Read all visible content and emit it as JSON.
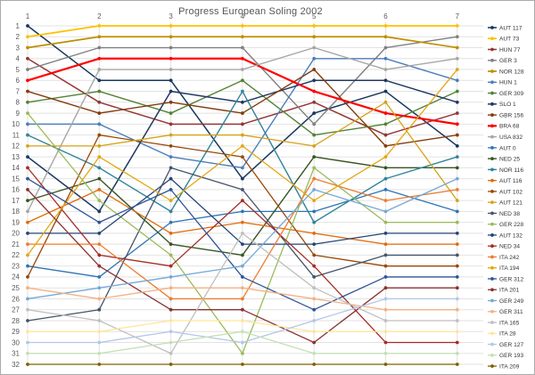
{
  "chart_data": {
    "type": "line",
    "subtype": "bump-chart",
    "title": "Progress European Soling 2002",
    "xlabel": "",
    "ylabel": "",
    "x": [
      1,
      2,
      3,
      4,
      5,
      6,
      7
    ],
    "x_ticks": [
      "1",
      "2",
      "3",
      "4",
      "5",
      "6",
      "7"
    ],
    "x_axis_position": "top",
    "y_ticks": [
      "1",
      "2",
      "3",
      "4",
      "5",
      "6",
      "7",
      "8",
      "9",
      "10",
      "11",
      "12",
      "13",
      "14",
      "15",
      "16",
      "17",
      "18",
      "19",
      "20",
      "21",
      "22",
      "23",
      "24",
      "25",
      "26",
      "27",
      "28",
      "29",
      "30",
      "31",
      "32"
    ],
    "ylim": [
      1,
      32
    ],
    "y_inverted": true,
    "grid": true,
    "gridline_color": "#e2e2e2",
    "axis_text_color": "#595959",
    "legend_position": "right",
    "legend_text_color": "#333333",
    "series": [
      {
        "name": "AUT 117",
        "color": "#17375E",
        "width": 1.5,
        "values": [
          1,
          6,
          6,
          15,
          9,
          7,
          12
        ]
      },
      {
        "name": "AUT 73",
        "color": "#FFC000",
        "width": 1.7,
        "values": [
          2,
          1,
          1,
          1,
          1,
          1,
          1
        ]
      },
      {
        "name": "HUN 77",
        "color": "#953735",
        "width": 1.5,
        "values": [
          4,
          8,
          10,
          10,
          8,
          11,
          9
        ]
      },
      {
        "name": "GER 3",
        "color": "#808080",
        "width": 1.4,
        "values": [
          5,
          3,
          3,
          3,
          10,
          3,
          2
        ]
      },
      {
        "name": "NOR 128",
        "color": "#BF8F00",
        "width": 1.7,
        "values": [
          3,
          2,
          2,
          2,
          2,
          2,
          3
        ]
      },
      {
        "name": "HUN 1",
        "color": "#4A7EBB",
        "width": 1.4,
        "values": [
          10,
          10,
          13,
          14,
          4,
          4,
          6
        ]
      },
      {
        "name": "GER 309",
        "color": "#548235",
        "width": 1.4,
        "values": [
          8,
          7,
          9,
          6,
          11,
          10,
          7
        ]
      },
      {
        "name": "SLO 1",
        "color": "#1F3864",
        "width": 1.5,
        "values": [
          13,
          18,
          7,
          8,
          6,
          6,
          8
        ]
      },
      {
        "name": "GBR 156",
        "color": "#843C0C",
        "width": 1.4,
        "values": [
          7,
          9,
          8,
          9,
          5,
          12,
          11
        ]
      },
      {
        "name": "BRA 68",
        "color": "#FF0000",
        "width": 2.2,
        "values": [
          6,
          4,
          4,
          4,
          7,
          9,
          10
        ]
      },
      {
        "name": "USA 832",
        "color": "#A6A6A6",
        "width": 1.4,
        "values": [
          18,
          5,
          5,
          5,
          3,
          5,
          4
        ]
      },
      {
        "name": "AUT 0",
        "color": "#2E75B6",
        "width": 1.3,
        "values": [
          23,
          24,
          19,
          18,
          18,
          16,
          18
        ]
      },
      {
        "name": "NED 25",
        "color": "#375623",
        "width": 1.4,
        "values": [
          17,
          15,
          21,
          22,
          13,
          14,
          14
        ]
      },
      {
        "name": "NOR 116",
        "color": "#31849B",
        "width": 1.4,
        "values": [
          11,
          14,
          18,
          7,
          19,
          15,
          13
        ]
      },
      {
        "name": "AUT 116",
        "color": "#E26B0A",
        "width": 1.3,
        "values": [
          19,
          16,
          20,
          19,
          20,
          21,
          21
        ]
      },
      {
        "name": "AUT 102",
        "color": "#984807",
        "width": 1.3,
        "values": [
          24,
          11,
          12,
          13,
          22,
          23,
          23
        ]
      },
      {
        "name": "AUT 121",
        "color": "#D6A319",
        "width": 1.3,
        "values": [
          12,
          12,
          11,
          11,
          12,
          8,
          17
        ]
      },
      {
        "name": "NED 38",
        "color": "#44546A",
        "width": 1.3,
        "values": [
          28,
          27,
          14,
          16,
          24,
          22,
          22
        ]
      },
      {
        "name": "GER 228",
        "color": "#9BBB59",
        "width": 1.3,
        "values": [
          9,
          17,
          22,
          31,
          14,
          19,
          19
        ]
      },
      {
        "name": "AUT 132",
        "color": "#264478",
        "width": 1.3,
        "values": [
          20,
          20,
          15,
          21,
          21,
          20,
          20
        ]
      },
      {
        "name": "NED 34",
        "color": "#A42D25",
        "width": 1.3,
        "values": [
          14,
          22,
          23,
          17,
          23,
          30,
          30
        ]
      },
      {
        "name": "ITA 242",
        "color": "#ED7D31",
        "width": 1.3,
        "values": [
          21,
          21,
          26,
          26,
          15,
          17,
          16
        ]
      },
      {
        "name": "ITA 194",
        "color": "#E3A712",
        "width": 1.3,
        "values": [
          22,
          13,
          17,
          12,
          17,
          13,
          5
        ]
      },
      {
        "name": "GER 312",
        "color": "#2F5597",
        "width": 1.3,
        "values": [
          15,
          19,
          16,
          24,
          27,
          24,
          24
        ]
      },
      {
        "name": "ITA 201",
        "color": "#8B3232",
        "width": 1.3,
        "values": [
          16,
          23,
          27,
          27,
          30,
          25,
          25
        ]
      },
      {
        "name": "GER 249",
        "color": "#74A9D8",
        "width": 1.3,
        "values": [
          26,
          25,
          24,
          23,
          16,
          18,
          15
        ]
      },
      {
        "name": "GER 311",
        "color": "#F4B183",
        "width": 1.3,
        "values": [
          25,
          26,
          25,
          25,
          26,
          27,
          27
        ]
      },
      {
        "name": "ITA 165",
        "color": "#BFBFBF",
        "width": 1.3,
        "values": [
          27,
          28,
          31,
          20,
          25,
          28,
          28
        ]
      },
      {
        "name": "ITA 28",
        "color": "#FFE699",
        "width": 1.3,
        "values": [
          29,
          29,
          28,
          28,
          29,
          29,
          29
        ]
      },
      {
        "name": "GER 127",
        "color": "#B4C7E7",
        "width": 1.3,
        "values": [
          30,
          30,
          29,
          30,
          28,
          26,
          26
        ]
      },
      {
        "name": "GER 193",
        "color": "#C5E0B4",
        "width": 1.3,
        "values": [
          31,
          31,
          30,
          29,
          31,
          31,
          31
        ]
      },
      {
        "name": "ITA 209",
        "color": "#7F6000",
        "width": 1.3,
        "values": [
          32,
          32,
          32,
          32,
          32,
          32,
          32
        ]
      }
    ]
  }
}
